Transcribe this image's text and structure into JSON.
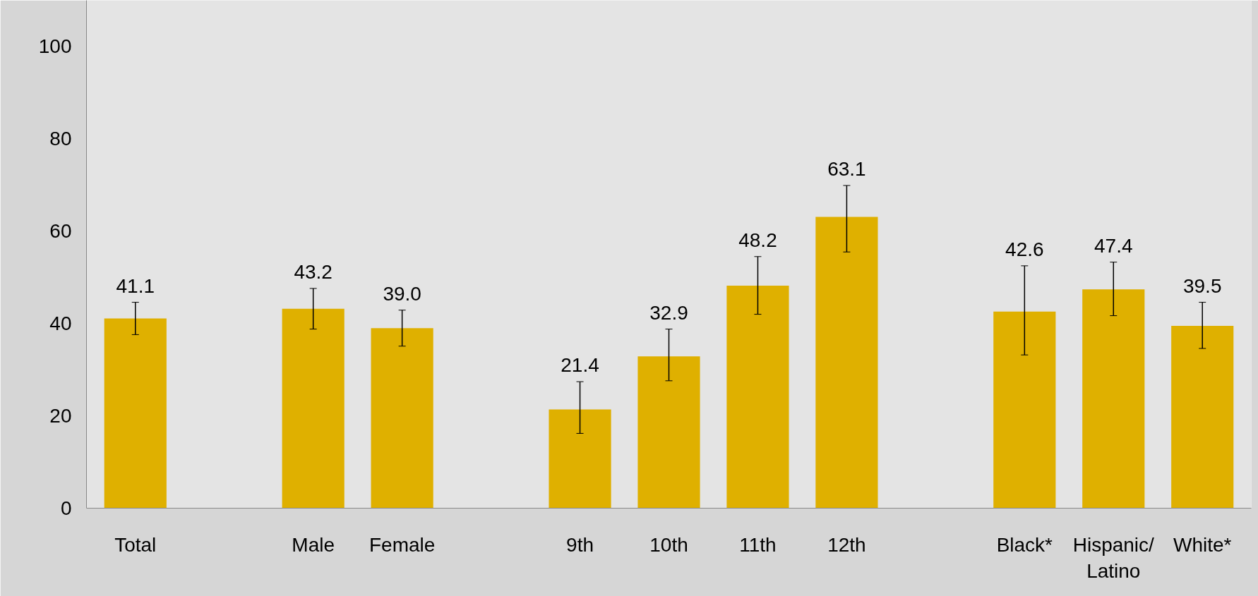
{
  "chart_data": {
    "type": "bar",
    "categories": [
      "Total",
      null,
      "Male",
      "Female",
      null,
      "9th",
      "10th",
      "11th",
      "12th",
      null,
      "Black*",
      "Hispanic/Latino",
      "White*"
    ],
    "values": [
      41.1,
      null,
      43.2,
      39.0,
      null,
      21.4,
      32.9,
      48.2,
      63.1,
      null,
      42.6,
      47.4,
      39.5
    ],
    "errors": [
      [
        37.6,
        44.6
      ],
      null,
      [
        38.8,
        47.6
      ],
      [
        35.1,
        42.9
      ],
      null,
      [
        16.2,
        27.4
      ],
      [
        27.6,
        38.8
      ],
      [
        42.0,
        54.5
      ],
      [
        55.5,
        69.9
      ],
      null,
      [
        33.2,
        52.5
      ],
      [
        41.7,
        53.3
      ],
      [
        34.6,
        44.6
      ]
    ],
    "color": "#dfb000",
    "ylim": [
      0,
      110
    ],
    "yticks": [
      0,
      20,
      40,
      60,
      80,
      100
    ],
    "value_labels": [
      "41.1",
      null,
      "43.2",
      "39.0",
      null,
      "21.4",
      "32.9",
      "48.2",
      "63.1",
      null,
      "42.6",
      "47.4",
      "39.5"
    ]
  }
}
